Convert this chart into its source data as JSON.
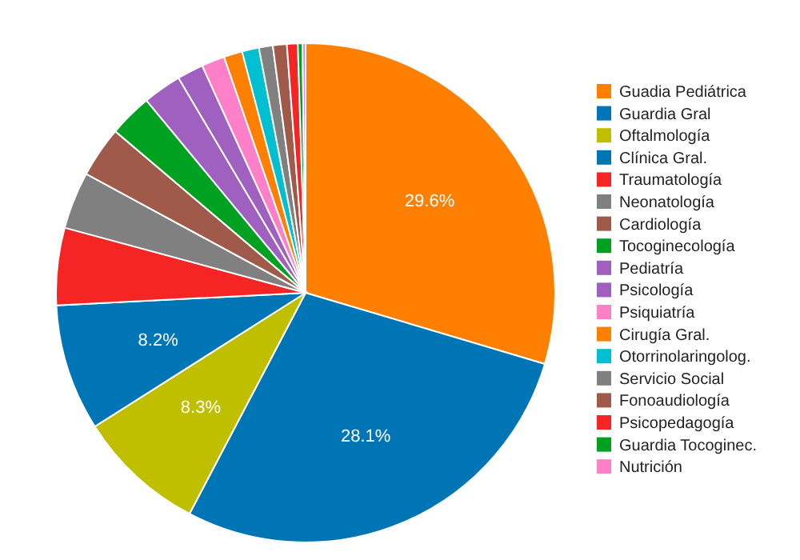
{
  "chart_data": {
    "type": "pie",
    "categories": [
      "Guadia Pediátrica",
      "Guardia Gral",
      "Oftalmología",
      "Clínica Gral.",
      "Traumatología",
      "Neonatología",
      "Cardiología",
      "Tocoginecología",
      "Pediatría",
      "Psicología",
      "Psiquiatría",
      "Cirugía Gral.",
      "Otorrinolaringolog.",
      "Servicio Social",
      "Fonoaudiología",
      "Psicopedagogía",
      "Guardia Tocoginec.",
      "Nutrición"
    ],
    "values": [
      29.6,
      28.1,
      8.3,
      8.2,
      5.0,
      3.7,
      3.3,
      2.8,
      2.5,
      1.7,
      1.5,
      1.2,
      1.1,
      0.9,
      0.9,
      0.7,
      0.3,
      0.2
    ],
    "colors": [
      "#ff8000",
      "#0075b5",
      "#bfbf00",
      "#0075b5",
      "#f52525",
      "#808080",
      "#a05a4a",
      "#00a020",
      "#a060c0",
      "#a060c0",
      "#ff80c8",
      "#ff8000",
      "#00bfd0",
      "#808080",
      "#a05a4a",
      "#f52525",
      "#00a020",
      "#ff80c8"
    ],
    "value_labels": [
      "29.6%",
      "28.1%",
      "8.3%",
      "8.2%",
      null,
      null,
      null,
      null,
      null,
      null,
      null,
      null,
      null,
      null,
      null,
      null,
      null,
      null
    ],
    "legend": "right"
  }
}
